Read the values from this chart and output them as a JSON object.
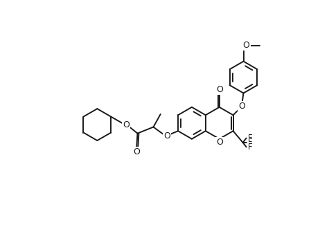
{
  "bg_color": "#ffffff",
  "line_color": "#1a1a1a",
  "line_width": 1.4,
  "font_size": 8.5,
  "figsize": [
    4.62,
    3.28
  ],
  "dpi": 100,
  "xlim": [
    0,
    100
  ],
  "ylim": [
    0,
    68
  ]
}
